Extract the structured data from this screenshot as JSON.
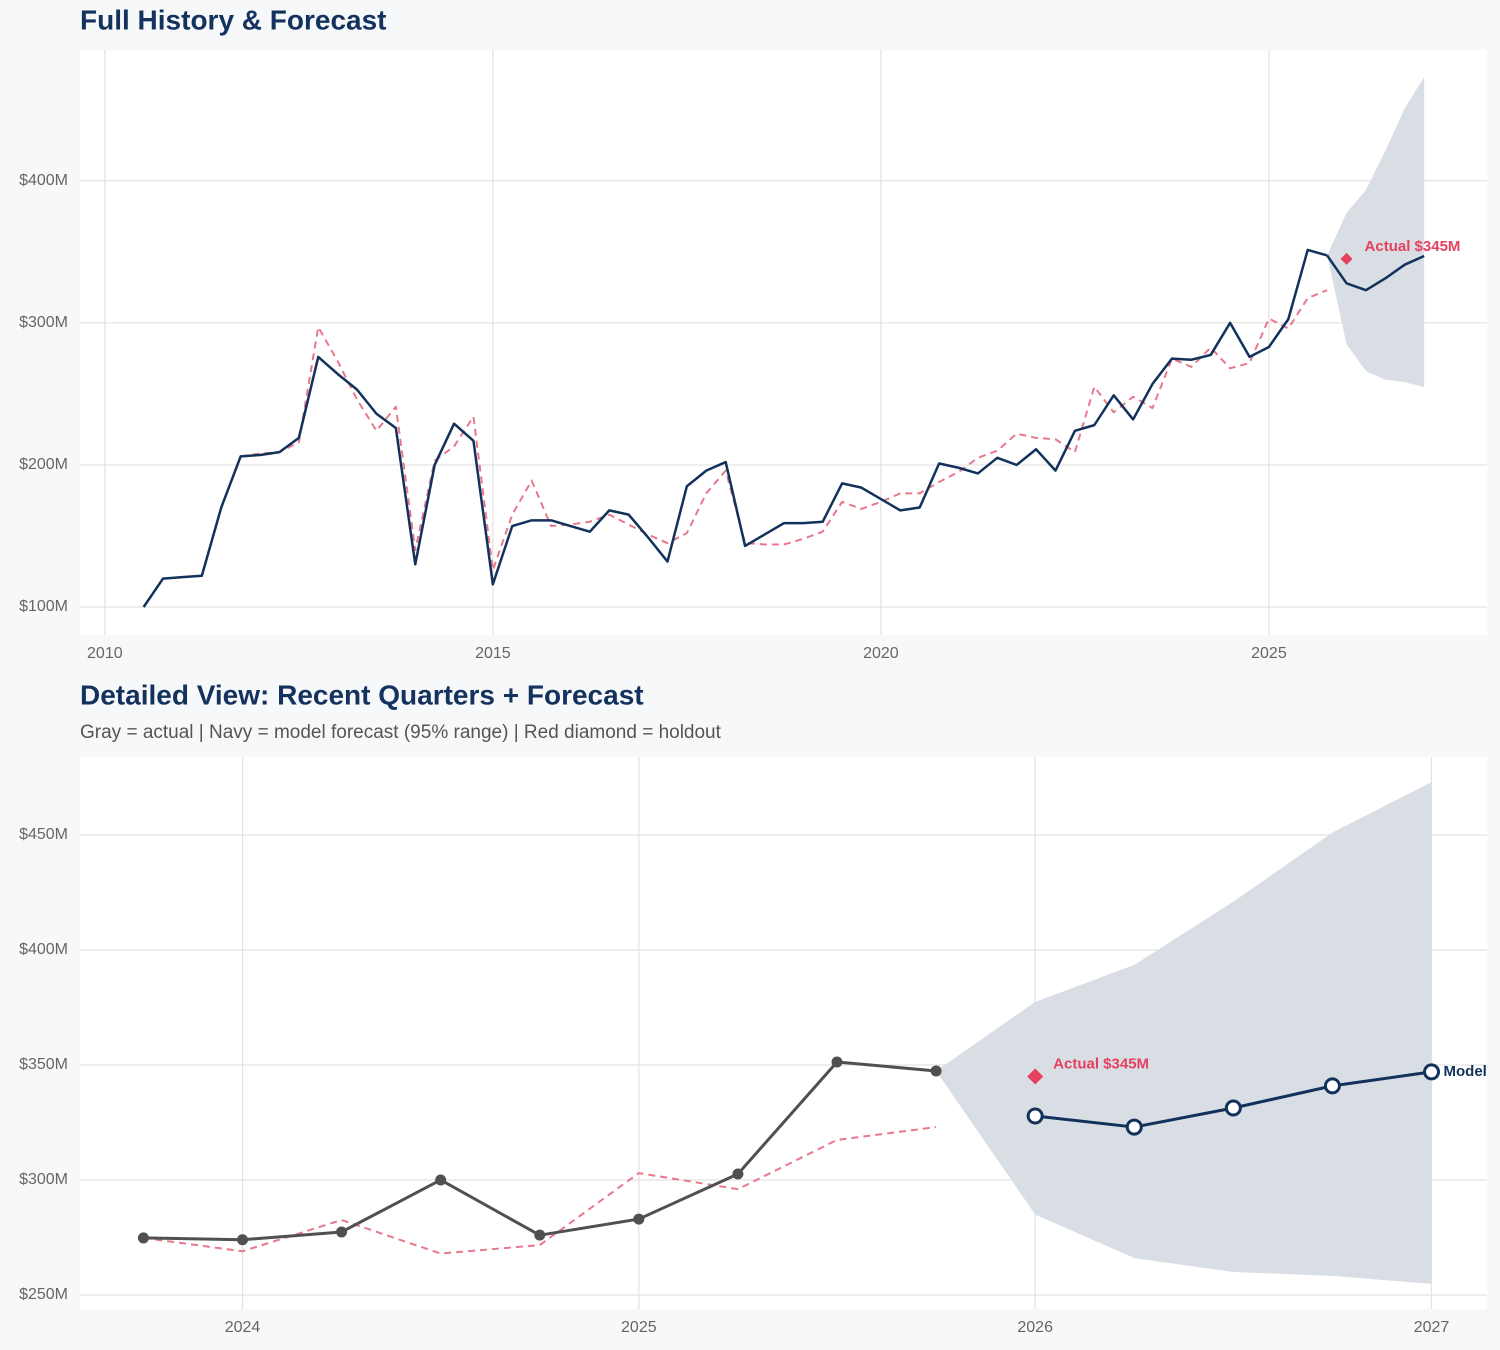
{
  "chart_data": [
    {
      "type": "line",
      "title": "Full History & Forecast",
      "xlim": [
        2009.68,
        2027.81
      ],
      "ylim": [
        80.3,
        492
      ],
      "xticks": [
        2010,
        2015,
        2020,
        2025
      ],
      "yticks": [
        {
          "value": 100,
          "label": "$100M"
        },
        {
          "value": 200,
          "label": "$200M"
        },
        {
          "value": 300,
          "label": "$300M"
        },
        {
          "value": 400,
          "label": "$400M"
        }
      ],
      "grid": true,
      "x": [
        2010.5,
        2010.75,
        2011,
        2011.25,
        2011.5,
        2011.75,
        2012,
        2012.25,
        2012.5,
        2012.75,
        2013,
        2013.25,
        2013.5,
        2013.75,
        2014,
        2014.25,
        2014.5,
        2014.75,
        2015,
        2015.25,
        2015.5,
        2015.75,
        2016,
        2016.25,
        2016.5,
        2016.75,
        2017,
        2017.25,
        2017.5,
        2017.75,
        2018,
        2018.25,
        2018.5,
        2018.75,
        2019,
        2019.25,
        2019.5,
        2019.75,
        2020,
        2020.25,
        2020.5,
        2020.75,
        2021,
        2021.25,
        2021.5,
        2021.75,
        2022,
        2022.25,
        2022.5,
        2022.75,
        2023,
        2023.25,
        2023.5,
        2023.75,
        2024,
        2024.25,
        2024.5,
        2024.75,
        2025,
        2025.25,
        2025.5,
        2025.75,
        2026,
        2026.25,
        2026.5,
        2026.75,
        2027
      ],
      "band": {
        "color": "#d9dee5",
        "lower": [
          null,
          null,
          null,
          null,
          null,
          null,
          null,
          null,
          null,
          null,
          null,
          null,
          null,
          null,
          null,
          null,
          null,
          null,
          null,
          null,
          null,
          null,
          null,
          null,
          null,
          null,
          null,
          null,
          null,
          null,
          null,
          null,
          null,
          null,
          null,
          null,
          null,
          null,
          null,
          null,
          null,
          null,
          null,
          null,
          null,
          null,
          null,
          null,
          null,
          null,
          null,
          null,
          null,
          null,
          null,
          null,
          null,
          null,
          null,
          null,
          null,
          347.4,
          285,
          266,
          260,
          258.3,
          254.8
        ],
        "upper": [
          null,
          null,
          null,
          null,
          null,
          null,
          null,
          null,
          null,
          null,
          null,
          null,
          null,
          null,
          null,
          null,
          null,
          null,
          null,
          null,
          null,
          null,
          null,
          null,
          null,
          null,
          null,
          null,
          null,
          null,
          null,
          null,
          null,
          null,
          null,
          null,
          null,
          null,
          null,
          null,
          null,
          null,
          null,
          null,
          null,
          null,
          null,
          null,
          null,
          null,
          null,
          null,
          null,
          null,
          null,
          null,
          null,
          null,
          null,
          null,
          null,
          347.4,
          377.4,
          393.5,
          421,
          451,
          473
        ]
      },
      "series": [
        {
          "color": "#e8788c",
          "dashed": true,
          "marker": "none",
          "values": [
            null,
            null,
            null,
            null,
            null,
            206,
            208,
            209,
            216,
            297,
            273,
            246,
            224,
            241,
            140,
            203,
            213,
            234,
            126,
            165,
            189,
            157,
            158,
            160,
            165,
            158,
            151,
            145,
            152,
            180,
            196,
            145,
            144,
            144,
            148,
            153,
            174,
            169,
            174,
            180,
            180,
            188,
            195,
            205,
            210,
            222,
            219,
            218,
            209,
            255,
            237,
            248,
            240,
            274.8,
            269,
            282.6,
            268,
            271.7,
            303,
            296,
            317.4,
            323,
            null,
            null,
            null,
            null,
            null
          ]
        },
        {
          "color": "#12325c",
          "dashed": false,
          "marker": "none",
          "values": [
            100,
            120,
            121,
            122,
            170,
            206,
            207,
            209,
            219,
            276,
            264,
            253,
            236,
            226,
            130,
            200,
            229,
            217,
            116,
            157,
            161,
            161,
            157,
            153,
            168,
            165,
            149,
            132,
            185,
            196,
            202,
            143,
            151,
            159,
            159,
            160,
            187,
            184,
            176,
            168,
            170,
            201,
            198,
            194,
            205,
            200,
            211,
            196,
            224,
            228,
            249,
            232,
            257,
            274.8,
            274,
            277.4,
            300,
            276,
            283,
            302.6,
            351.3,
            347.4,
            null,
            null,
            null,
            null,
            null
          ]
        },
        {
          "color": "#12325c",
          "dashed": false,
          "marker": "none",
          "values": [
            null,
            null,
            null,
            null,
            null,
            null,
            null,
            null,
            null,
            null,
            null,
            null,
            null,
            null,
            null,
            null,
            null,
            null,
            null,
            null,
            null,
            null,
            null,
            null,
            null,
            null,
            null,
            null,
            null,
            null,
            null,
            null,
            null,
            null,
            null,
            null,
            null,
            null,
            null,
            null,
            null,
            null,
            null,
            null,
            null,
            null,
            null,
            null,
            null,
            null,
            null,
            null,
            null,
            null,
            null,
            null,
            null,
            null,
            null,
            null,
            null,
            347.4,
            327.8,
            323,
            331.3,
            340.9,
            347
          ]
        }
      ],
      "holdout": {
        "x": 2026,
        "value": 345,
        "label": "Actual $345M",
        "color": "#e5405e"
      }
    },
    {
      "type": "line",
      "title": "Detailed View: Recent Quarters + Forecast",
      "subtitle": "Gray = actual  |  Navy = model forecast (95% range)  |  Red diamond = holdout",
      "xlim": [
        2023.59,
        2027.14
      ],
      "ylim": [
        243.9,
        483.9
      ],
      "xticks": [
        2024,
        2025,
        2026,
        2027
      ],
      "yticks": [
        {
          "value": 250,
          "label": "$250M"
        },
        {
          "value": 300,
          "label": "$300M"
        },
        {
          "value": 350,
          "label": "$350M"
        },
        {
          "value": 400,
          "label": "$400M"
        },
        {
          "value": 450,
          "label": "$450M"
        }
      ],
      "grid": true,
      "x": [
        2023.75,
        2024,
        2024.25,
        2024.5,
        2024.75,
        2025,
        2025.25,
        2025.5,
        2025.75,
        2026,
        2026.25,
        2026.5,
        2026.75,
        2027
      ],
      "band": {
        "color": "#d9dee5",
        "lower": [
          null,
          null,
          null,
          null,
          null,
          null,
          null,
          null,
          347.4,
          285,
          266,
          260,
          258.3,
          254.8
        ],
        "upper": [
          null,
          null,
          null,
          null,
          null,
          null,
          null,
          null,
          347.4,
          377.4,
          393.5,
          421,
          451,
          473
        ]
      },
      "series": [
        {
          "color": "#e8788c",
          "dashed": true,
          "marker": "none",
          "values": [
            274.8,
            269,
            282.6,
            268,
            271.7,
            303,
            296,
            317.4,
            323,
            null,
            null,
            null,
            null,
            null
          ]
        },
        {
          "color": "#505050",
          "dashed": false,
          "marker": "filled",
          "values": [
            274.8,
            274,
            277.4,
            300,
            276,
            283,
            302.6,
            351.3,
            347.4,
            null,
            null,
            null,
            null,
            null
          ]
        },
        {
          "color": "#12325c",
          "dashed": false,
          "marker": "open",
          "end_label": "Model",
          "values": [
            null,
            null,
            null,
            null,
            null,
            null,
            null,
            null,
            null,
            327.8,
            323,
            331.3,
            340.9,
            347
          ]
        }
      ],
      "holdout": {
        "x": 2026,
        "value": 345,
        "label": "Actual $345M",
        "color": "#e5405e"
      }
    }
  ]
}
